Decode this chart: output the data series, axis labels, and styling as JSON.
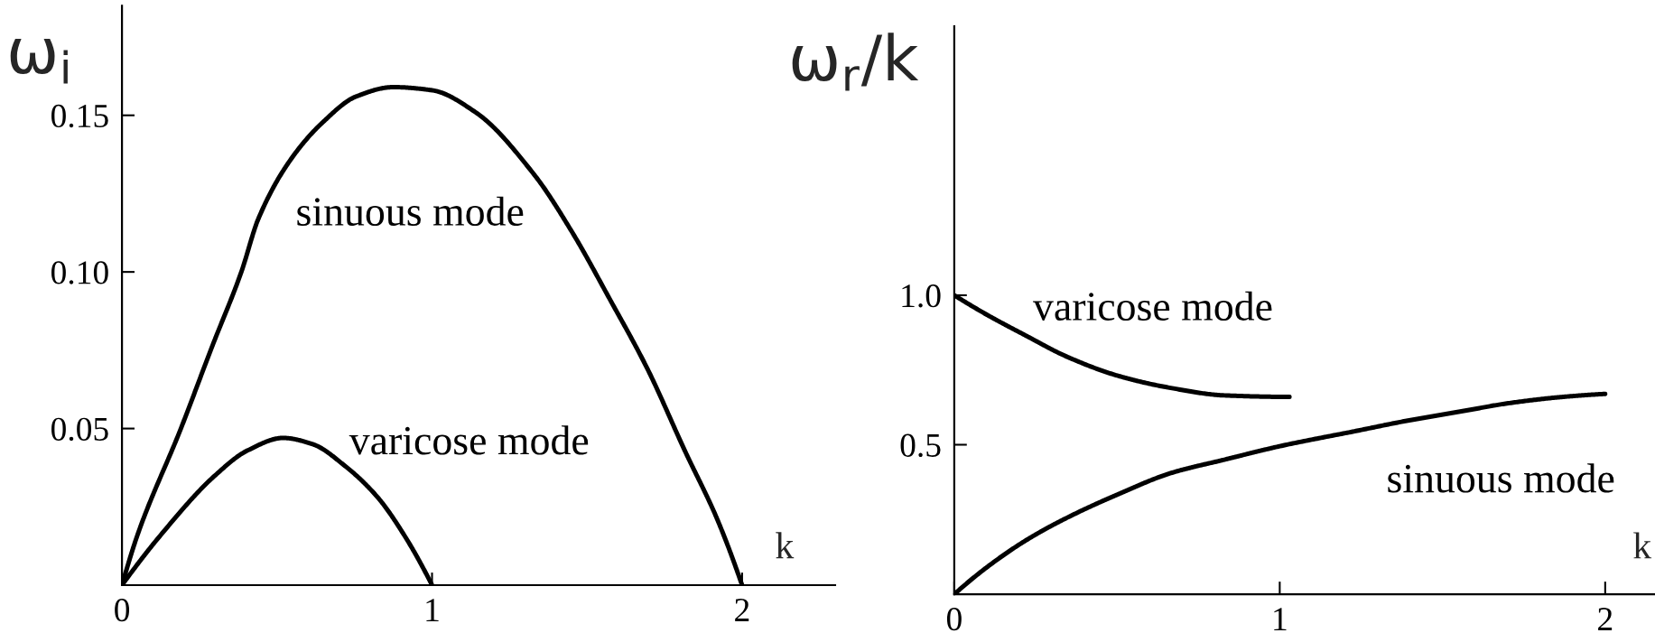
{
  "chart_data": [
    {
      "type": "line",
      "xlabel": "k",
      "ylabel": "ω$_{i}$",
      "xlim": [
        0,
        2.3
      ],
      "ylim": [
        0,
        0.185
      ],
      "xticks": [
        0,
        1,
        2
      ],
      "yticks": [
        0.05,
        {
          "value": 0.1,
          "label": "0.10"
        },
        0.15
      ],
      "grid": false,
      "line_style": "solid",
      "series": [
        {
          "name": "sinuous mode",
          "color": "#000000",
          "x": [
            0,
            0.05,
            0.19,
            0.29,
            0.385,
            0.44,
            0.545,
            0.65,
            0.755,
            0.875,
            1.0,
            1.14,
            1.33,
            1.45,
            1.575,
            1.695,
            1.815,
            1.92,
            2.0
          ],
          "values": [
            0,
            0.016,
            0.05,
            0.076,
            0.1,
            0.117,
            0.136,
            0.148,
            0.156,
            0.159,
            0.158,
            0.151,
            0.131,
            0.113,
            0.091,
            0.069,
            0.043,
            0.021,
            0
          ]
        },
        {
          "name": "varicose mode",
          "color": "#000000",
          "x": [
            0,
            0.125,
            0.3,
            0.405,
            0.52,
            0.615,
            0.72,
            0.825,
            0.91,
            1.0
          ],
          "values": [
            0,
            0.016,
            0.035,
            0.043,
            0.047,
            0.045,
            0.038,
            0.028,
            0.016,
            0
          ]
        }
      ]
    },
    {
      "type": "line",
      "xlabel": "k",
      "ylabel": "ω$_{r}$/k",
      "xlim": [
        0,
        2.15
      ],
      "ylim": [
        0,
        1.9
      ],
      "xticks": [
        0,
        1,
        2
      ],
      "yticks": [
        0.5,
        {
          "value": 1,
          "label": "1.0"
        }
      ],
      "grid": false,
      "line_style": "solid",
      "series": [
        {
          "name": "varicose mode",
          "color": "#000000",
          "x": [
            0,
            0.1,
            0.22,
            0.345,
            0.505,
            0.665,
            0.83,
            1.03
          ],
          "values": [
            1.0,
            0.935,
            0.865,
            0.795,
            0.73,
            0.69,
            0.665,
            0.66
          ]
        },
        {
          "name": "sinuous mode",
          "color": "#000000",
          "x": [
            0,
            0.1,
            0.22,
            0.345,
            0.505,
            0.665,
            0.83,
            1.0,
            1.23,
            1.39,
            1.55,
            1.71,
            1.87,
            2.0
          ],
          "values": [
            0,
            0.09,
            0.18,
            0.255,
            0.335,
            0.405,
            0.45,
            0.495,
            0.545,
            0.58,
            0.61,
            0.64,
            0.66,
            0.67
          ]
        }
      ]
    }
  ]
}
